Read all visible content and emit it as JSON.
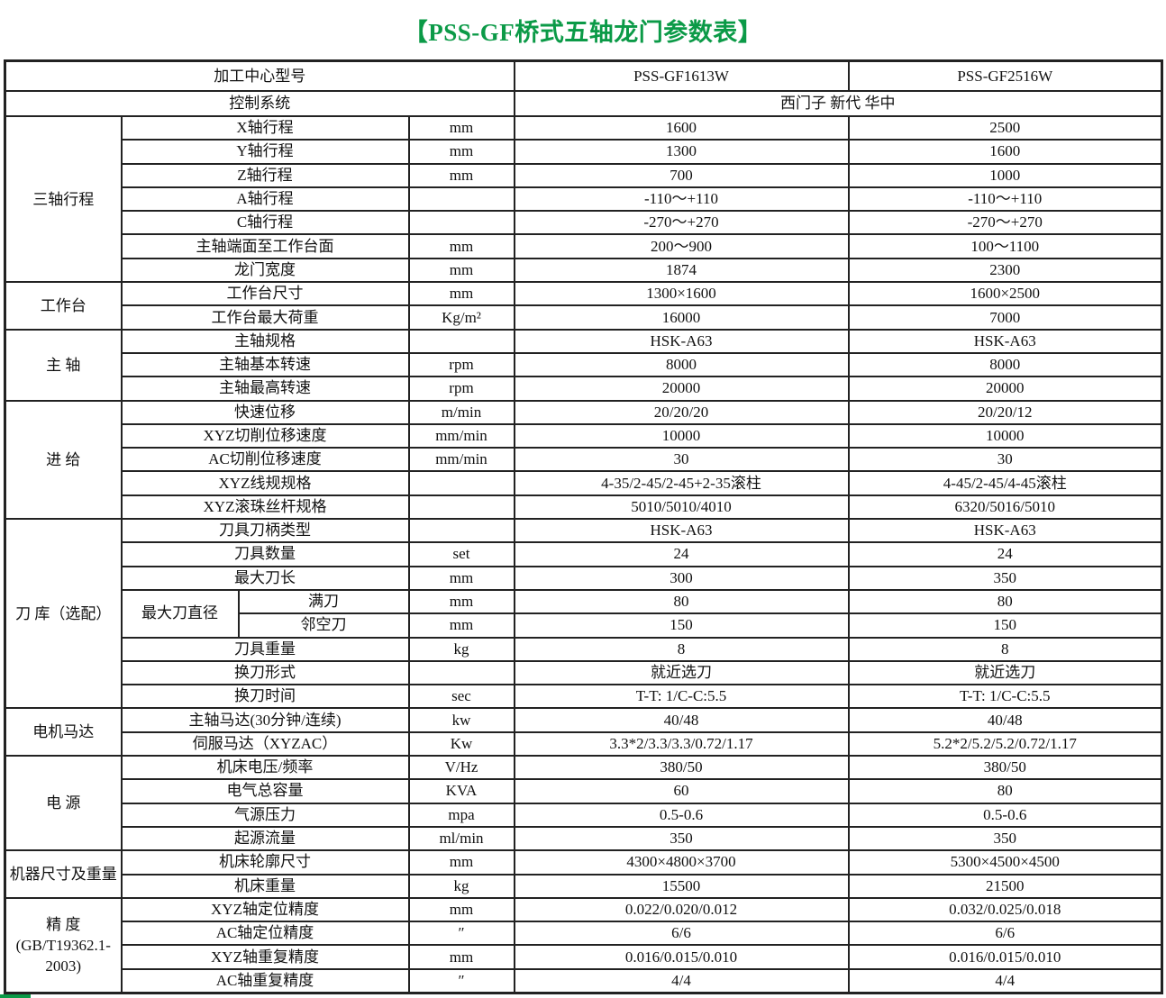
{
  "title": "【PSS-GF桥式五轴龙门参数表】",
  "colors": {
    "title": "#0b9a47",
    "border": "#222222"
  },
  "header": {
    "label": "加工中心型号",
    "models": [
      "PSS-GF1613W",
      "PSS-GF2516W"
    ]
  },
  "control": {
    "label": "控制系统",
    "value": "西门子 新代 华中"
  },
  "groups": [
    {
      "label": "三轴行程",
      "rows": [
        {
          "name": "X轴行程",
          "unit": "mm",
          "v": [
            "1600",
            "2500"
          ]
        },
        {
          "name": "Y轴行程",
          "unit": "mm",
          "v": [
            "1300",
            "1600"
          ]
        },
        {
          "name": "Z轴行程",
          "unit": "mm",
          "v": [
            "700",
            "1000"
          ]
        },
        {
          "name": "A轴行程",
          "unit": "",
          "v": [
            "-110～+110",
            "-110～+110"
          ]
        },
        {
          "name": "C轴行程",
          "unit": "",
          "v": [
            "-270～+270",
            "-270～+270"
          ]
        },
        {
          "name": "主轴端面至工作台面",
          "unit": "mm",
          "v": [
            "200～900",
            "100～1100"
          ]
        },
        {
          "name": "龙门宽度",
          "unit": "mm",
          "v": [
            "1874",
            "2300"
          ]
        }
      ]
    },
    {
      "label": "工作台",
      "rows": [
        {
          "name": "工作台尺寸",
          "unit": "mm",
          "v": [
            "1300×1600",
            "1600×2500"
          ]
        },
        {
          "name": "工作台最大荷重",
          "unit": "Kg/m²",
          "v": [
            "16000",
            "7000"
          ]
        }
      ]
    },
    {
      "label": "主 轴",
      "rows": [
        {
          "name": "主轴规格",
          "unit": "",
          "v": [
            "HSK-A63",
            "HSK-A63"
          ]
        },
        {
          "name": "主轴基本转速",
          "unit": "rpm",
          "v": [
            "8000",
            "8000"
          ]
        },
        {
          "name": "主轴最高转速",
          "unit": "rpm",
          "v": [
            "20000",
            "20000"
          ]
        }
      ]
    },
    {
      "label": "进 给",
      "rows": [
        {
          "name": "快速位移",
          "unit": "m/min",
          "v": [
            "20/20/20",
            "20/20/12"
          ]
        },
        {
          "name": "XYZ切削位移速度",
          "unit": "mm/min",
          "v": [
            "10000",
            "10000"
          ]
        },
        {
          "name": "AC切削位移速度",
          "unit": "mm/min",
          "v": [
            "30",
            "30"
          ]
        },
        {
          "name": "XYZ线规规格",
          "unit": "",
          "v": [
            "4-35/2-45/2-45+2-35滚柱",
            "4-45/2-45/4-45滚柱"
          ]
        },
        {
          "name": "XYZ滚珠丝杆规格",
          "unit": "",
          "v": [
            "5010/5010/4010",
            "6320/5016/5010"
          ]
        }
      ]
    },
    {
      "label": "刀 库（选配）",
      "rows": [
        {
          "name": "刀具刀柄类型",
          "unit": "",
          "v": [
            "HSK-A63",
            "HSK-A63"
          ]
        },
        {
          "name": "刀具数量",
          "unit": "set",
          "v": [
            "24",
            "24"
          ]
        },
        {
          "name": "最大刀长",
          "unit": "mm",
          "v": [
            "300",
            "350"
          ]
        },
        {
          "parent": "最大刀直径",
          "name": "满刀",
          "unit": "mm",
          "v": [
            "80",
            "80"
          ]
        },
        {
          "parent": "最大刀直径",
          "name": "邻空刀",
          "unit": "mm",
          "v": [
            "150",
            "150"
          ]
        },
        {
          "name": "刀具重量",
          "unit": "kg",
          "v": [
            "8",
            "8"
          ]
        },
        {
          "name": "换刀形式",
          "unit": "",
          "v": [
            "就近选刀",
            "就近选刀"
          ]
        },
        {
          "name": "换刀时间",
          "unit": "sec",
          "v": [
            "T-T: 1/C-C:5.5",
            "T-T: 1/C-C:5.5"
          ]
        }
      ]
    },
    {
      "label": "电机马达",
      "rows": [
        {
          "name": "主轴马达(30分钟/连续)",
          "unit": "kw",
          "v": [
            "40/48",
            "40/48"
          ]
        },
        {
          "name": "伺服马达（XYZAC）",
          "unit": "Kw",
          "v": [
            "3.3*2/3.3/3.3/0.72/1.17",
            "5.2*2/5.2/5.2/0.72/1.17"
          ]
        }
      ]
    },
    {
      "label": "电 源",
      "rows": [
        {
          "name": "机床电压/频率",
          "unit": "V/Hz",
          "v": [
            "380/50",
            "380/50"
          ]
        },
        {
          "name": "电气总容量",
          "unit": "KVA",
          "v": [
            "60",
            "80"
          ]
        },
        {
          "name": "气源压力",
          "unit": "mpa",
          "v": [
            "0.5-0.6",
            "0.5-0.6"
          ]
        },
        {
          "name": "起源流量",
          "unit": "ml/min",
          "v": [
            "350",
            "350"
          ]
        }
      ]
    },
    {
      "label": "机器尺寸及重量",
      "rows": [
        {
          "name": "机床轮廓尺寸",
          "unit": "mm",
          "v": [
            "4300×4800×3700",
            "5300×4500×4500"
          ]
        },
        {
          "name": "机床重量",
          "unit": "kg",
          "v": [
            "15500",
            "21500"
          ]
        }
      ]
    },
    {
      "label": "精 度 (GB/T19362.1-2003)",
      "rows": [
        {
          "name": "XYZ轴定位精度",
          "unit": "mm",
          "v": [
            "0.022/0.020/0.012",
            "0.032/0.025/0.018"
          ]
        },
        {
          "name": "AC轴定位精度",
          "unit": "″",
          "v": [
            "6/6",
            "6/6"
          ]
        },
        {
          "name": "XYZ轴重复精度",
          "unit": "mm",
          "v": [
            "0.016/0.015/0.010",
            "0.016/0.015/0.010"
          ]
        },
        {
          "name": "AC轴重复精度",
          "unit": "″",
          "v": [
            "4/4",
            "4/4"
          ]
        }
      ]
    }
  ]
}
